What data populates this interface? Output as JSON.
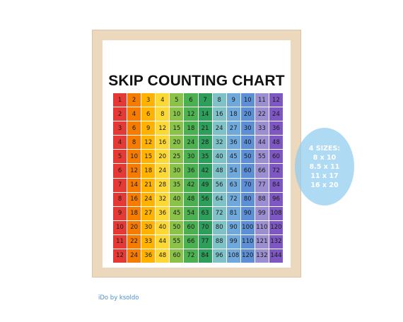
{
  "poster": {
    "title": "SKIP COUNTING CHART",
    "rows": 12,
    "cols": 12,
    "column_colors": [
      "#e53935",
      "#f57c00",
      "#ffb300",
      "#fdd835",
      "#8bc34a",
      "#4caf50",
      "#2e9e5b",
      "#7ec2c8",
      "#6fa9dc",
      "#5c8fd6",
      "#9c8fd1",
      "#7e57c2"
    ]
  },
  "badge": {
    "lines": [
      "4 SIZES:",
      "8 x 10",
      "8.5 x 11",
      "11 x 17",
      "16 x 20"
    ]
  },
  "credit": "iDo by ksoldo"
}
